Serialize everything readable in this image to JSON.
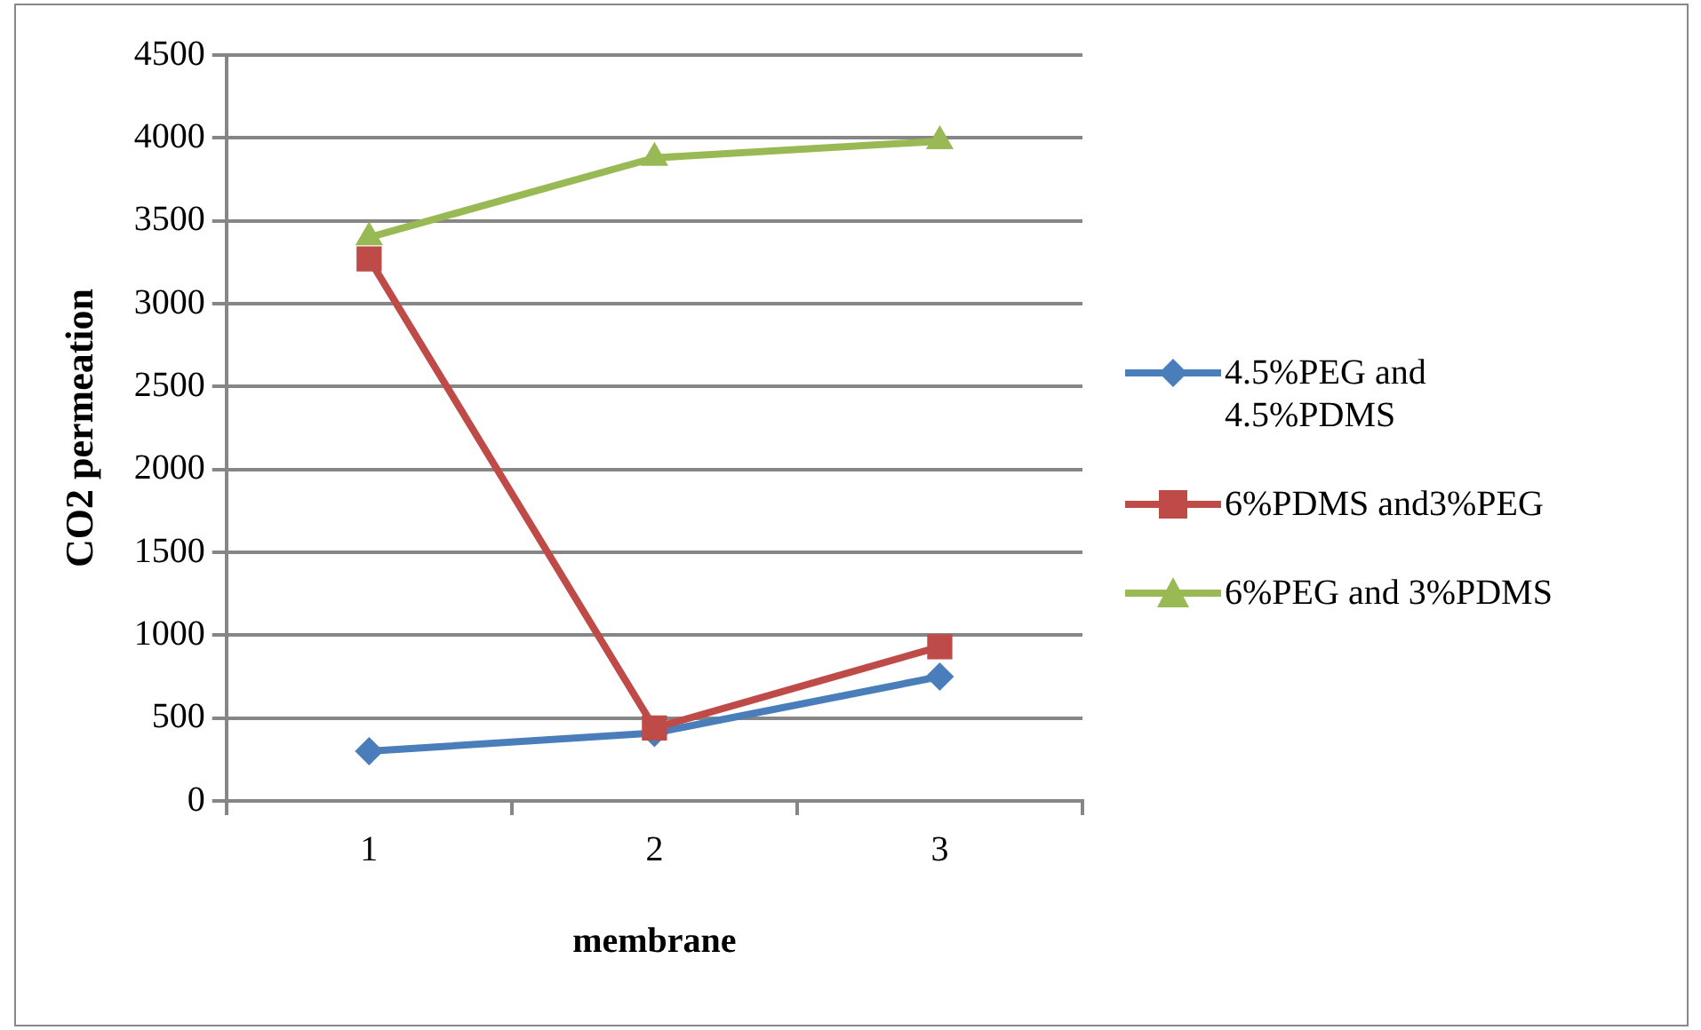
{
  "chart_data": {
    "type": "line",
    "xlabel": "membrane",
    "ylabel": "CO2 permeation",
    "categories": [
      "1",
      "2",
      "3"
    ],
    "series": [
      {
        "name": "4.5%PEG and 4.5%PDMS",
        "color": "#4a7ebb",
        "marker": "diamond",
        "values": [
          300,
          410,
          750
        ]
      },
      {
        "name": "6%PDMS and3%PEG",
        "color": "#be4b48",
        "marker": "square",
        "values": [
          3270,
          440,
          930
        ]
      },
      {
        "name": "6%PEG and 3%PDMS",
        "color": "#98b954",
        "marker": "triangle",
        "values": [
          3400,
          3880,
          3980
        ]
      }
    ],
    "ylim": [
      0,
      4500
    ],
    "yticks": [
      0,
      500,
      1000,
      1500,
      2000,
      2500,
      3000,
      3500,
      4000,
      4500
    ],
    "grid": "y",
    "legend": "right"
  }
}
